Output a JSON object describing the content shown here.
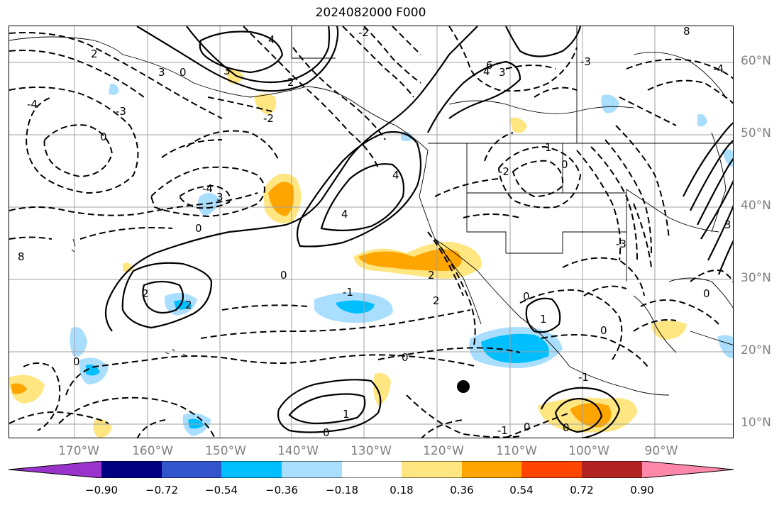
{
  "title": "2024082000 F000",
  "lat_labels": [
    "60°N",
    "50°N",
    "40°N",
    "30°N",
    "20°N",
    "10°N"
  ],
  "lon_labels": [
    "170°W",
    "160°W",
    "150°W",
    "140°W",
    "130°W",
    "120°W",
    "110°W",
    "100°W",
    "90°W"
  ],
  "contour_labels": [
    "-4",
    "-3",
    "-2",
    "-1",
    "0",
    "1",
    "2",
    "3",
    "4",
    "6",
    "8"
  ],
  "colorbar": {
    "colors": [
      "#9933cc",
      "#000080",
      "#3355cc",
      "#00bfff",
      "#aadeff",
      "#ffffff",
      "#ffe680",
      "#ffa500",
      "#ff4500",
      "#b22222",
      "#ff88aa"
    ],
    "ticks": [
      "−0.90",
      "−0.72",
      "−0.54",
      "−0.36",
      "−0.18",
      "0.18",
      "0.36",
      "0.54",
      "0.72",
      "0.90"
    ]
  },
  "marker": "storm-center-dot"
}
